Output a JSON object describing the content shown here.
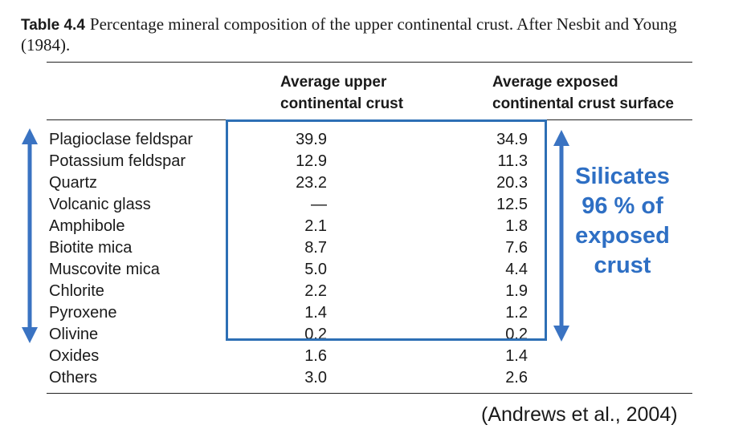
{
  "caption": {
    "label": "Table 4.4",
    "text": "Percentage mineral composition of the upper continental crust. After Nesbit and Young (1984)."
  },
  "columns": {
    "col1_line1": "Average upper",
    "col1_line2": "continental crust",
    "col2_line1": "Average exposed",
    "col2_line2": "continental crust surface"
  },
  "rows": [
    {
      "mineral": "Plagioclase feldspar",
      "upper": "39.9",
      "exposed": "34.9"
    },
    {
      "mineral": "Potassium feldspar",
      "upper": "12.9",
      "exposed": "11.3"
    },
    {
      "mineral": "Quartz",
      "upper": "23.2",
      "exposed": "20.3"
    },
    {
      "mineral": "Volcanic glass",
      "upper": "—",
      "exposed": "12.5"
    },
    {
      "mineral": "Amphibole",
      "upper": "2.1",
      "exposed": "1.8"
    },
    {
      "mineral": "Biotite mica",
      "upper": "8.7",
      "exposed": "7.6"
    },
    {
      "mineral": "Muscovite mica",
      "upper": "5.0",
      "exposed": "4.4"
    },
    {
      "mineral": "Chlorite",
      "upper": "2.2",
      "exposed": "1.9"
    },
    {
      "mineral": "Pyroxene",
      "upper": "1.4",
      "exposed": "1.2"
    },
    {
      "mineral": "Olivine",
      "upper": "0.2",
      "exposed": "0.2"
    },
    {
      "mineral": "Oxides",
      "upper": "1.6",
      "exposed": "1.4"
    },
    {
      "mineral": "Others",
      "upper": "3.0",
      "exposed": "2.6"
    }
  ],
  "annotation": {
    "line1": "Silicates",
    "line2": "96 % of",
    "line3": "exposed",
    "line4": "crust",
    "color": "#2e6fc4"
  },
  "citation": "(Andrews et al., 2004)"
}
